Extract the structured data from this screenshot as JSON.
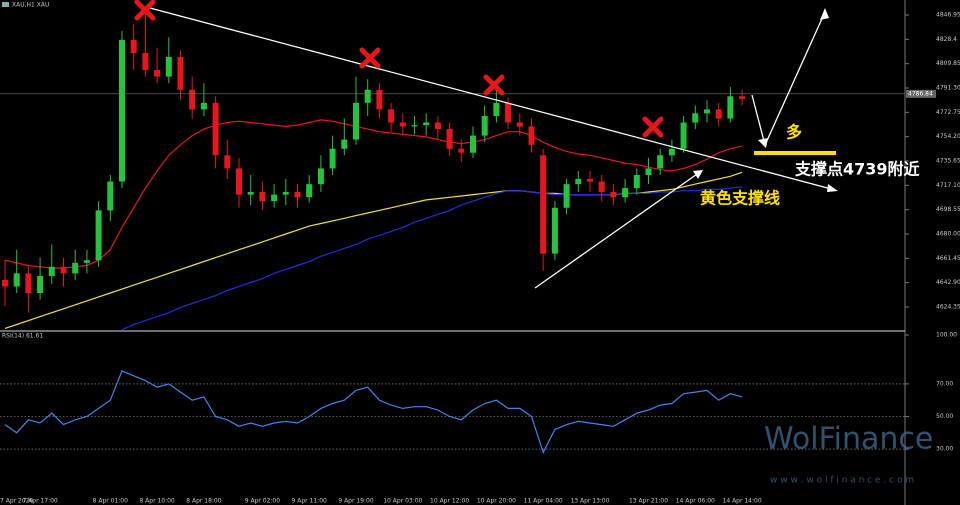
{
  "chart_data": [
    {
      "type": "candlestick",
      "title": "XAU,H1  XAU",
      "categories": [
        null,
        "7 Apr 2026",
        null,
        "7 Apr 17:00",
        null,
        null,
        null,
        null,
        null,
        "8 Apr 01:00",
        null,
        null,
        null,
        "8 Apr 10:00",
        null,
        null,
        null,
        "8 Apr 18:00",
        null,
        null,
        null,
        null,
        "9 Apr 02:00",
        null,
        null,
        null,
        "9 Apr 11:00",
        null,
        null,
        null,
        "9 Apr 19:00",
        null,
        null,
        null,
        "10 Apr 03:00",
        null,
        null,
        null,
        "10 Apr 12:00",
        null,
        null,
        null,
        "10 Apr 20:00",
        null,
        null,
        null,
        "11 Apr 04:00",
        null,
        null,
        null,
        "13 Apr 13:00",
        null,
        null,
        null,
        null,
        "13 Apr 21:00",
        null,
        null,
        null,
        "14 Apr 06:00",
        null,
        null,
        null,
        "14 Apr 14:00"
      ],
      "candles": [
        [
          4645,
          4660,
          4625,
          4640
        ],
        [
          4640,
          4668,
          4635,
          4650
        ],
        [
          4650,
          4655,
          4620,
          4635
        ],
        [
          4635,
          4662,
          4630,
          4648
        ],
        [
          4648,
          4672,
          4642,
          4655
        ],
        [
          4655,
          4662,
          4640,
          4650
        ],
        [
          4650,
          4668,
          4645,
          4658
        ],
        [
          4658,
          4668,
          4650,
          4660
        ],
        [
          4660,
          4705,
          4655,
          4698
        ],
        [
          4698,
          4725,
          4690,
          4720
        ],
        [
          4720,
          4835,
          4715,
          4828
        ],
        [
          4828,
          4840,
          4805,
          4818
        ],
        [
          4818,
          4852,
          4800,
          4805
        ],
        [
          4805,
          4822,
          4795,
          4800
        ],
        [
          4800,
          4830,
          4795,
          4815
        ],
        [
          4815,
          4820,
          4782,
          4790
        ],
        [
          4790,
          4800,
          4768,
          4775
        ],
        [
          4775,
          4795,
          4770,
          4780
        ],
        [
          4780,
          4785,
          4730,
          4740
        ],
        [
          4740,
          4752,
          4722,
          4730
        ],
        [
          4730,
          4738,
          4700,
          4710
        ],
        [
          4710,
          4725,
          4702,
          4712
        ],
        [
          4712,
          4720,
          4698,
          4705
        ],
        [
          4705,
          4718,
          4700,
          4710
        ],
        [
          4710,
          4722,
          4702,
          4712
        ],
        [
          4712,
          4718,
          4700,
          4708
        ],
        [
          4708,
          4725,
          4704,
          4718
        ],
        [
          4718,
          4740,
          4712,
          4730
        ],
        [
          4730,
          4755,
          4725,
          4745
        ],
        [
          4745,
          4768,
          4740,
          4752
        ],
        [
          4752,
          4800,
          4748,
          4780
        ],
        [
          4780,
          4798,
          4770,
          4790
        ],
        [
          4790,
          4795,
          4768,
          4775
        ],
        [
          4775,
          4780,
          4758,
          4765
        ],
        [
          4765,
          4772,
          4755,
          4762
        ],
        [
          4762,
          4770,
          4756,
          4763
        ],
        [
          4763,
          4772,
          4755,
          4765
        ],
        [
          4765,
          4770,
          4752,
          4760
        ],
        [
          4760,
          4765,
          4740,
          4745
        ],
        [
          4745,
          4752,
          4735,
          4742
        ],
        [
          4742,
          4762,
          4738,
          4755
        ],
        [
          4755,
          4778,
          4750,
          4770
        ],
        [
          4770,
          4790,
          4765,
          4780
        ],
        [
          4780,
          4784,
          4760,
          4765
        ],
        [
          4765,
          4772,
          4755,
          4762
        ],
        [
          4762,
          4768,
          4742,
          4748
        ],
        [
          4740,
          4745,
          4652,
          4665
        ],
        [
          4665,
          4705,
          4660,
          4700
        ],
        [
          4700,
          4722,
          4695,
          4718
        ],
        [
          4718,
          4728,
          4712,
          4722
        ],
        [
          4722,
          4728,
          4712,
          4720
        ],
        [
          4720,
          4725,
          4705,
          4712
        ],
        [
          4712,
          4718,
          4702,
          4708
        ],
        [
          4708,
          4722,
          4704,
          4715
        ],
        [
          4715,
          4730,
          4710,
          4725
        ],
        [
          4725,
          4738,
          4718,
          4730
        ],
        [
          4730,
          4745,
          4725,
          4740
        ],
        [
          4740,
          4752,
          4735,
          4745
        ],
        [
          4745,
          4770,
          4742,
          4765
        ],
        [
          4765,
          4778,
          4760,
          4772
        ],
        [
          4772,
          4782,
          4765,
          4775
        ],
        [
          4775,
          4780,
          4762,
          4768
        ],
        [
          4768,
          4792,
          4765,
          4785
        ],
        [
          4785,
          4790,
          4778,
          4783
        ]
      ],
      "up_color": "#22c53c",
      "down_color": "#e8161b",
      "series": [
        {
          "color": "#e8161b",
          "values": [
            4660,
            4658,
            4656,
            4655,
            4654,
            4654,
            4655,
            4656,
            4660,
            4668,
            4685,
            4700,
            4715,
            4728,
            4740,
            4748,
            4755,
            4760,
            4763,
            4765,
            4766,
            4765,
            4764,
            4763,
            4762,
            4763,
            4765,
            4767,
            4766,
            4764,
            4762,
            4760,
            4758,
            4757,
            4756,
            4755,
            4754,
            4752,
            4750,
            4749,
            4750,
            4752,
            4755,
            4758,
            4758,
            4755,
            4750,
            4746,
            4743,
            4741,
            4740,
            4738,
            4736,
            4734,
            4733,
            4731,
            4729,
            4728,
            4730,
            4733,
            4737,
            4742,
            4745,
            4747
          ]
        },
        {
          "color": "#f2e03a",
          "values": [
            4608,
            4611,
            4614,
            4617,
            4620,
            4623,
            4626,
            4629,
            4632,
            4635,
            4638,
            4641,
            4644,
            4647,
            4650,
            4653,
            4656,
            4659,
            4662,
            4665,
            4668,
            4671,
            4674,
            4677,
            4680,
            4683,
            4686,
            4688,
            4690,
            4692,
            4694,
            4696,
            4698,
            4700,
            4702,
            4704,
            4706,
            4707,
            4708,
            4709,
            4710,
            4711,
            4712,
            4713,
            4713,
            4712,
            4711,
            4711,
            4710,
            4710,
            4710,
            4710,
            4710,
            4711,
            4711,
            4712,
            4713,
            4714,
            4716,
            4718,
            4720,
            4722,
            4724,
            4727
          ]
        },
        {
          "color": "#1e2ee0",
          "values": [
            null,
            null,
            null,
            null,
            null,
            null,
            null,
            null,
            null,
            null,
            4607,
            4611,
            4614,
            4617,
            4620,
            4624,
            4627,
            4630,
            4633,
            4637,
            4640,
            4643,
            4646,
            4650,
            4653,
            4656,
            4659,
            4663,
            4666,
            4669,
            4672,
            4676,
            4679,
            4682,
            4685,
            4689,
            4692,
            4695,
            4698,
            4702,
            4705,
            4708,
            4711,
            4713,
            4713,
            4712,
            4711,
            4710,
            4710,
            4710,
            4710,
            4710,
            4710,
            4711,
            4711,
            4711,
            4712,
            4712,
            4713,
            4713,
            4714,
            4714,
            4715,
            4716
          ]
        }
      ],
      "ylim": [
        4606.8,
        4858.4
      ],
      "yticks": [
        4846.95,
        4828.4,
        4809.85,
        {
          "value": 4791.3,
          "label": "4791.30"
        },
        4772.75,
        {
          "value": 4754.2,
          "label": "4754.20"
        },
        4735.65,
        {
          "value": 4717.1,
          "label": "4717.10"
        },
        4698.55,
        {
          "value": 4680,
          "label": "4680.00"
        },
        4661.45,
        {
          "value": 4642.9,
          "label": "4642.90"
        },
        4624.35
      ],
      "last_price": 4786.84,
      "annotations": [
        "多",
        "支撑点4739附近",
        "黄色支撑线"
      ]
    },
    {
      "type": "line",
      "title": "RSI(14) 61.61",
      "series": [
        {
          "color": "#3d86f0",
          "values": [
            45,
            40,
            48,
            46,
            52,
            45,
            48,
            50,
            55,
            60,
            78,
            75,
            72,
            68,
            70,
            65,
            60,
            62,
            50,
            48,
            44,
            46,
            44,
            46,
            47,
            46,
            50,
            55,
            58,
            60,
            66,
            68,
            60,
            57,
            55,
            56,
            56,
            54,
            50,
            48,
            54,
            58,
            60,
            55,
            55,
            50,
            28,
            42,
            45,
            47,
            46,
            45,
            44,
            48,
            52,
            54,
            57,
            58,
            64,
            65,
            66,
            60,
            64,
            62
          ]
        }
      ],
      "ylim": [
        0,
        100
      ],
      "yticks": [
        {
          "value": 100,
          "label": "100.00"
        },
        {
          "value": 70,
          "label": "70.00"
        },
        {
          "value": 50,
          "label": "50.00"
        },
        {
          "value": 30,
          "label": "30.00"
        }
      ],
      "grid_levels": [
        70,
        50,
        30
      ]
    }
  ],
  "watermark": {
    "brand": "WolFinance",
    "url": "w w w . w o l f i n a n c e . c o m"
  }
}
